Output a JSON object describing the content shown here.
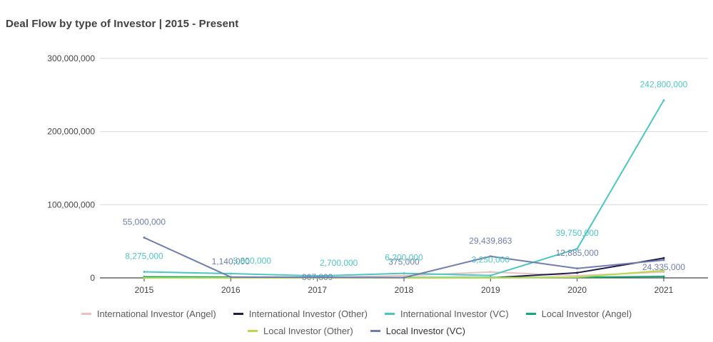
{
  "chart_data": {
    "type": "line",
    "title": "Deal Flow by type of Investor | 2015 - Present",
    "xlabel": "",
    "ylabel": "",
    "categories": [
      "2015",
      "2016",
      "2017",
      "2018",
      "2019",
      "2020",
      "2021"
    ],
    "ylim": [
      0,
      300000000
    ],
    "yticks": [
      0,
      100000000,
      200000000,
      300000000
    ],
    "ytick_labels": [
      "0",
      "100,000,000",
      "200,000,000",
      "300,000,000"
    ],
    "grid": true,
    "legend_position": "bottom",
    "series": [
      {
        "name": "International Investor (Angel)",
        "color": "#e8c3bd",
        "values": [
          1000000,
          1500000,
          500000,
          3000000,
          8000000,
          3000000,
          8000000
        ]
      },
      {
        "name": "International Investor (Other)",
        "color": "#1e1b4d",
        "values": [
          0,
          0,
          0,
          0,
          0,
          7000000,
          27000000
        ]
      },
      {
        "name": "International Investor (VC)",
        "color": "#4cc6c4",
        "values": [
          8275000,
          5800000,
          2700000,
          6200000,
          3250000,
          39750000,
          242800000
        ]
      },
      {
        "name": "Local Investor (Angel)",
        "color": "#11a97a",
        "values": [
          1500000,
          1000000,
          500000,
          500000,
          500000,
          800000,
          2000000
        ]
      },
      {
        "name": "Local Investor (Other)",
        "color": "#b6d94a",
        "values": [
          0,
          0,
          0,
          0,
          0,
          1000000,
          10000000
        ]
      },
      {
        "name": "Local Investor (VC)",
        "color": "#6f7db2",
        "values": [
          55000000,
          1140000,
          867809,
          375000,
          29439863,
          12885000,
          24335000
        ]
      }
    ],
    "data_labels": [
      {
        "text": "55,000,000",
        "color": "#6f7db2",
        "series": 5,
        "index": 0,
        "pos": "above"
      },
      {
        "text": "8,275,000",
        "color": "#4cc6c4",
        "series": 2,
        "index": 0,
        "pos": "above"
      },
      {
        "text": "1,140,000",
        "color": "#6f7db2",
        "series": 5,
        "index": 1,
        "pos": "above"
      },
      {
        "text": "5,800,000",
        "color": "#4cc6c4",
        "series": 2,
        "index": 1,
        "pos": "above-right"
      },
      {
        "text": "2,700,000",
        "color": "#4cc6c4",
        "series": 2,
        "index": 2,
        "pos": "above-right"
      },
      {
        "text": "867,809",
        "color": "#6f7db2",
        "series": 5,
        "index": 2,
        "pos": "on"
      },
      {
        "text": "375,000",
        "color": "#6f7db2",
        "series": 5,
        "index": 3,
        "pos": "above"
      },
      {
        "text": "6,200,000",
        "color": "#4cc6c4",
        "series": 2,
        "index": 3,
        "pos": "above"
      },
      {
        "text": "29,439,863",
        "color": "#6f7db2",
        "series": 5,
        "index": 4,
        "pos": "above"
      },
      {
        "text": "3,250,000",
        "color": "#4cc6c4",
        "series": 2,
        "index": 4,
        "pos": "above"
      },
      {
        "text": "39,750,000",
        "color": "#4cc6c4",
        "series": 2,
        "index": 5,
        "pos": "above"
      },
      {
        "text": "12,885,000",
        "color": "#6f7db2",
        "series": 5,
        "index": 5,
        "pos": "above"
      },
      {
        "text": "242,800,000",
        "color": "#4cc6c4",
        "series": 2,
        "index": 6,
        "pos": "above"
      },
      {
        "text": "24,335,000",
        "color": "#6f7db2",
        "series": 5,
        "index": 6,
        "pos": "below"
      }
    ]
  }
}
